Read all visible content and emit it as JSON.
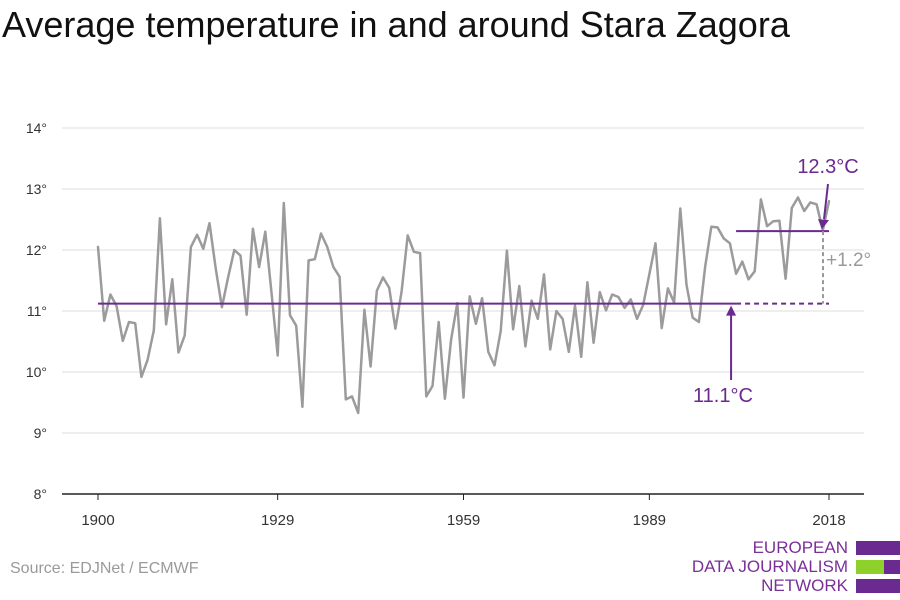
{
  "title": "Average temperature in and around Stara Zagora",
  "source": "Source: EDJNet / ECMWF",
  "colors": {
    "series": "#9b9b9b",
    "accent": "#6a2a8f",
    "axis": "#222222",
    "grid": "#dddddd",
    "logo_green": "#8fd12b"
  },
  "logo": {
    "lines": [
      "EUROPEAN",
      "DATA JOURNALISM",
      "NETWORK"
    ]
  },
  "chart_data": {
    "type": "line",
    "title": "Average temperature in and around Stara Zagora",
    "xlabel": "",
    "ylabel": "",
    "xlim": [
      1900,
      2018
    ],
    "ylim": [
      8,
      14
    ],
    "xticks": [
      1900,
      1929,
      1959,
      1989,
      2018
    ],
    "xtick_labels": [
      "1900",
      "1929",
      "1959",
      "1989",
      "2018"
    ],
    "yticks": [
      8,
      9,
      10,
      11,
      12,
      13,
      14
    ],
    "ytick_labels": [
      "8°",
      "9°",
      "10°",
      "11°",
      "12°",
      "13°",
      "14°"
    ],
    "grid": "horizontal",
    "x": [
      1900,
      1901,
      1902,
      1903,
      1904,
      1905,
      1906,
      1907,
      1908,
      1909,
      1910,
      1911,
      1912,
      1913,
      1914,
      1915,
      1916,
      1917,
      1918,
      1919,
      1920,
      1921,
      1922,
      1923,
      1924,
      1925,
      1926,
      1927,
      1928,
      1929,
      1930,
      1931,
      1932,
      1933,
      1934,
      1935,
      1936,
      1937,
      1938,
      1939,
      1940,
      1941,
      1942,
      1943,
      1944,
      1945,
      1946,
      1947,
      1948,
      1949,
      1950,
      1951,
      1952,
      1953,
      1954,
      1955,
      1956,
      1957,
      1958,
      1959,
      1960,
      1961,
      1962,
      1963,
      1964,
      1965,
      1966,
      1967,
      1968,
      1969,
      1970,
      1971,
      1972,
      1973,
      1974,
      1975,
      1976,
      1977,
      1978,
      1979,
      1980,
      1981,
      1982,
      1983,
      1984,
      1985,
      1986,
      1987,
      1988,
      1989,
      1990,
      1991,
      1992,
      1993,
      1994,
      1995,
      1996,
      1997,
      1998,
      1999,
      2000,
      2001,
      2002,
      2003,
      2004,
      2005,
      2006,
      2007,
      2008,
      2009,
      2010,
      2011,
      2012,
      2013,
      2014,
      2015,
      2016,
      2017,
      2018
    ],
    "series": [
      {
        "values": [
          12.05,
          10.84,
          11.27,
          11.08,
          10.51,
          10.82,
          10.8,
          9.92,
          10.2,
          10.68,
          12.52,
          10.78,
          11.52,
          10.32,
          10.6,
          12.05,
          12.25,
          12.02,
          12.44,
          11.7,
          11.06,
          11.55,
          12.0,
          11.91,
          10.94,
          12.35,
          11.72,
          12.3,
          11.3,
          10.27,
          12.77,
          10.93,
          10.76,
          9.43,
          11.83,
          11.85,
          12.27,
          12.05,
          11.72,
          11.56,
          9.55,
          9.6,
          9.33,
          11.02,
          10.09,
          11.33,
          11.55,
          11.38,
          10.71,
          11.32,
          12.24,
          11.97,
          11.95,
          9.6,
          9.77,
          10.82,
          9.56,
          10.53,
          11.13,
          9.58,
          11.24,
          10.79,
          11.21,
          10.33,
          10.11,
          10.67,
          11.99,
          10.7,
          11.41,
          10.42,
          11.17,
          10.87,
          11.6,
          10.37,
          11.0,
          10.87,
          10.33,
          11.09,
          10.25,
          11.47,
          10.48,
          11.31,
          11.01,
          11.27,
          11.23,
          11.05,
          11.19,
          10.87,
          11.1,
          11.6,
          12.11,
          10.72,
          11.37,
          11.14,
          12.68,
          11.43,
          10.89,
          10.82,
          11.72,
          12.38,
          12.37,
          12.19,
          12.11,
          11.61,
          11.81,
          11.52,
          11.65,
          12.83,
          12.39,
          12.47,
          12.48,
          11.53,
          12.69,
          12.86,
          12.64,
          12.78,
          12.75,
          12.32,
          12.8
        ]
      }
    ],
    "reference_lines": [
      {
        "label": "11.1°C",
        "value": 11.12,
        "x_start": 1900,
        "x_end": 2003,
        "x_dashed_end": 2018
      },
      {
        "label": "12.3°C",
        "value": 12.31,
        "x_start": 2003,
        "x_end": 2018
      }
    ],
    "annotations": {
      "baseline": "11.1°C",
      "recent": "12.3°C",
      "difference": "+1.2°"
    }
  }
}
